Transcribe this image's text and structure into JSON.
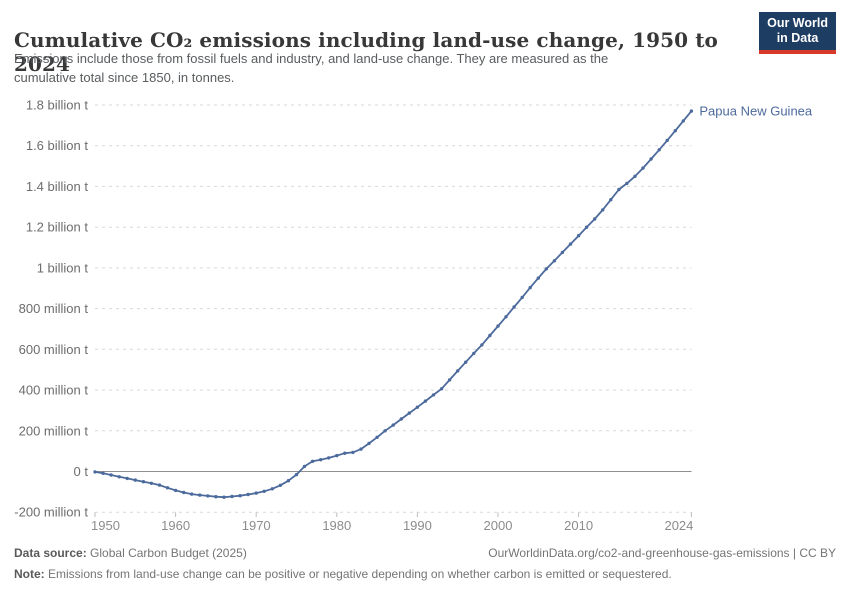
{
  "header": {
    "title": "Cumulative CO₂ emissions including land-use change, 1950 to 2024",
    "subtitle_lines": [
      "Emissions include those from fossil fuels and industry, and land-use change. They are measured as the",
      "cumulative total since 1850, in tonnes."
    ],
    "logo": {
      "line1": "Our World",
      "line2": "in Data"
    }
  },
  "colors": {
    "series": "#4c6a9c",
    "logo_background": "#1d3d63",
    "logo_accent": "#d73a2a",
    "gridline": "#d9d9d9",
    "zero_line": "#8f8f8f",
    "y_label": "#6d6d6d",
    "x_label": "#8c8c8c"
  },
  "chart_data": {
    "type": "line",
    "title": "Cumulative CO₂ emissions including land-use change, 1950 to 2024",
    "xlabel": "",
    "ylabel": "",
    "values_unit": "million tonnes",
    "xlim": [
      1950,
      2024
    ],
    "ylim": [
      -200,
      1800
    ],
    "grid": "dashed horizontal",
    "legend_position": "end-of-line label",
    "x_ticks": [
      {
        "value": 1950,
        "label": "1950"
      },
      {
        "value": 1960,
        "label": "1960"
      },
      {
        "value": 1970,
        "label": "1970"
      },
      {
        "value": 1980,
        "label": "1980"
      },
      {
        "value": 1990,
        "label": "1990"
      },
      {
        "value": 2000,
        "label": "2000"
      },
      {
        "value": 2010,
        "label": "2010"
      },
      {
        "value": 2024,
        "label": "2024"
      }
    ],
    "y_ticks": [
      {
        "value": 1800,
        "label": "1.8 billion t"
      },
      {
        "value": 1600,
        "label": "1.6 billion t"
      },
      {
        "value": 1400,
        "label": "1.4 billion t"
      },
      {
        "value": 1200,
        "label": "1.2 billion t"
      },
      {
        "value": 1000,
        "label": "1 billion t"
      },
      {
        "value": 800,
        "label": "800 million t"
      },
      {
        "value": 600,
        "label": "600 million t"
      },
      {
        "value": 400,
        "label": "400 million t"
      },
      {
        "value": 200,
        "label": "200 million t"
      },
      {
        "value": 0,
        "label": "0 t"
      },
      {
        "value": -200,
        "label": "-200 million t"
      }
    ],
    "series": [
      {
        "name": "Papua New Guinea",
        "color": "#4c6a9c",
        "years": [
          1950,
          1951,
          1952,
          1953,
          1954,
          1955,
          1956,
          1957,
          1958,
          1959,
          1960,
          1961,
          1962,
          1963,
          1964,
          1965,
          1966,
          1967,
          1968,
          1969,
          1970,
          1971,
          1972,
          1973,
          1974,
          1975,
          1976,
          1977,
          1978,
          1979,
          1980,
          1981,
          1982,
          1983,
          1984,
          1985,
          1986,
          1987,
          1988,
          1989,
          1990,
          1991,
          1992,
          1993,
          1994,
          1995,
          1996,
          1997,
          1998,
          1999,
          2000,
          2001,
          2002,
          2003,
          2004,
          2005,
          2006,
          2007,
          2008,
          2009,
          2010,
          2011,
          2012,
          2013,
          2014,
          2015,
          2016,
          2017,
          2018,
          2019,
          2020,
          2021,
          2022,
          2023,
          2024
        ],
        "values": [
          -2,
          -9,
          -17,
          -26,
          -34,
          -42,
          -50,
          -58,
          -67,
          -80,
          -93,
          -103,
          -111,
          -116,
          -120,
          -124,
          -126,
          -123,
          -119,
          -113,
          -106,
          -97,
          -85,
          -68,
          -45,
          -15,
          25,
          50,
          58,
          67,
          78,
          90,
          94,
          110,
          138,
          168,
          200,
          228,
          258,
          287,
          316,
          346,
          376,
          406,
          450,
          494,
          537,
          580,
          622,
          668,
          714,
          760,
          808,
          855,
          903,
          950,
          995,
          1035,
          1076,
          1117,
          1158,
          1200,
          1240,
          1285,
          1335,
          1385,
          1415,
          1450,
          1490,
          1535,
          1580,
          1626,
          1674,
          1722,
          1770
        ]
      }
    ]
  },
  "footer": {
    "source_label": "Data source:",
    "source_text": "Global Carbon Budget (2025)",
    "rights": "OurWorldinData.org/co2-and-greenhouse-gas-emissions | CC BY",
    "note_label": "Note:",
    "note_text": "Emissions from land-use change can be positive or negative depending on whether carbon is emitted or sequestered."
  }
}
